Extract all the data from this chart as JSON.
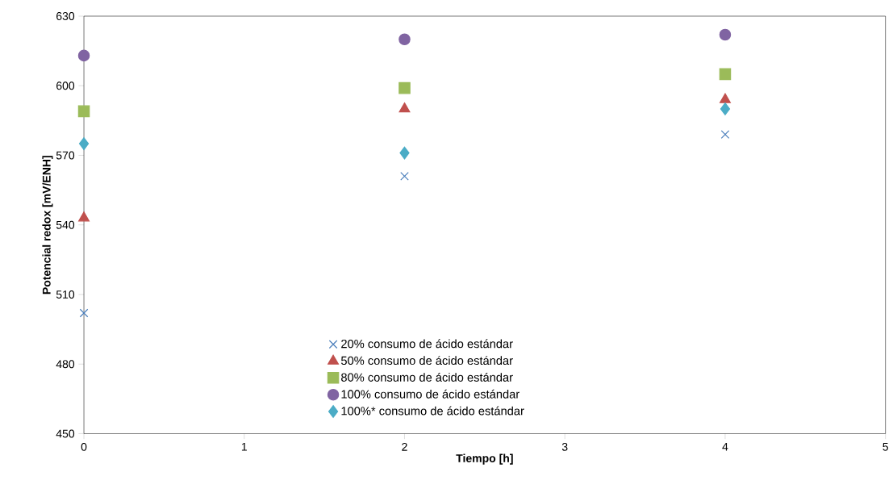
{
  "chart_data": {
    "type": "scatter",
    "xlabel": "Tiempo [h]",
    "ylabel": "Potencial redox [mV/ENH]",
    "xlim": [
      0,
      5
    ],
    "xticks": [
      0,
      1,
      2,
      3,
      4,
      5
    ],
    "ylim": [
      450,
      630
    ],
    "yticks": [
      450,
      480,
      510,
      540,
      570,
      600,
      630
    ],
    "grid": false,
    "legend": "bottom",
    "series": [
      {
        "name": "20% consumo de ácido estándar",
        "color": "#4a7ebb",
        "marker": "cross",
        "x": [
          0,
          2,
          4
        ],
        "values": [
          502,
          561,
          579
        ]
      },
      {
        "name": "50% consumo de ácido estándar",
        "color": "#c0504d",
        "marker": "triangle",
        "x": [
          0,
          2,
          4
        ],
        "values": [
          543,
          590,
          594
        ]
      },
      {
        "name": "80% consumo de ácido estándar",
        "color": "#9bbb59",
        "marker": "square",
        "x": [
          0,
          2,
          4
        ],
        "values": [
          589,
          599,
          605
        ]
      },
      {
        "name": "100% consumo de ácido estándar",
        "color": "#8064a2",
        "marker": "circle",
        "x": [
          0,
          2,
          4
        ],
        "values": [
          613,
          620,
          622
        ]
      },
      {
        "name": "100%* consumo de ácido estándar",
        "color": "#4bacc6",
        "marker": "diamond",
        "x": [
          0,
          2,
          4
        ],
        "values": [
          575,
          571,
          590
        ]
      }
    ]
  }
}
